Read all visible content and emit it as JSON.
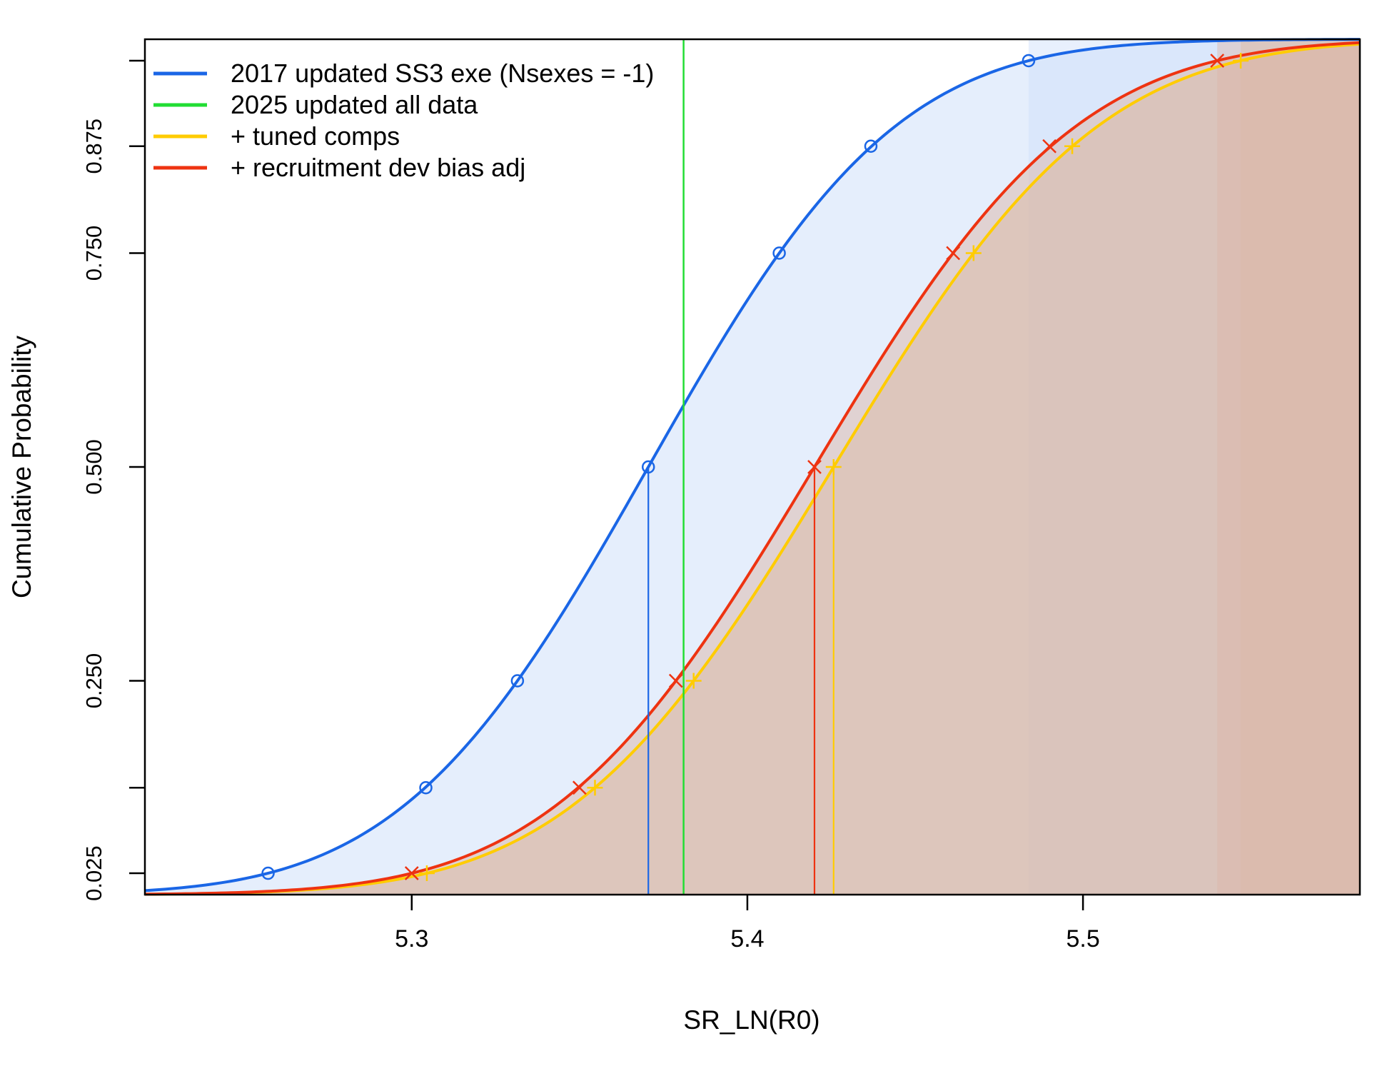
{
  "chart_data": {
    "type": "line",
    "title": "",
    "xlabel": "SR_LN(R0)",
    "ylabel": "Cumulative Probability",
    "xlim": [
      5.2205,
      5.5825
    ],
    "ylim": [
      0.0,
      1.0
    ],
    "x_ticks": [
      5.3,
      5.4,
      5.5
    ],
    "x_tick_labels": [
      "5.3",
      "5.4",
      "5.5"
    ],
    "y_ticks": [
      0.025,
      0.125,
      0.25,
      0.5,
      0.75,
      0.875,
      0.975
    ],
    "y_tick_labels": [
      "0.025",
      "",
      "0.250",
      "0.500",
      "0.750",
      "0.875",
      ""
    ],
    "marker_probabilities": [
      0.025,
      0.125,
      0.25,
      0.5,
      0.75,
      0.875,
      0.975
    ],
    "legend_position": "top-left",
    "grid": false,
    "series": [
      {
        "name": "2017 updated SS3 exe (Nsexes = -1)",
        "color": "#1a66e6",
        "marker": "circle",
        "type": "cdf",
        "median": 5.3705,
        "sd": 0.05783,
        "shade_color": "#ccdefa",
        "quantile_x": [
          5.2572,
          5.3042,
          5.3315,
          5.3705,
          5.4095,
          5.4368,
          5.4838
        ]
      },
      {
        "name": "2025 updated all data",
        "color": "#22dd33",
        "type": "vline",
        "x": 5.381
      },
      {
        "name": "+ tuned comps",
        "color": "#ffcc00",
        "marker": "plus",
        "type": "cdf",
        "median": 5.4257,
        "sd": 0.06185,
        "shade_color": "#d8bea5",
        "quantile_x": [
          5.3045,
          5.3546,
          5.384,
          5.4257,
          5.4674,
          5.4968,
          5.547
        ]
      },
      {
        "name": "+ recruitment dev bias adj",
        "color": "#ee3311",
        "marker": "x",
        "type": "cdf",
        "median": 5.42,
        "sd": 0.06123,
        "shade_color": "#dcb6a8",
        "quantile_x": [
          5.3,
          5.35,
          5.3787,
          5.42,
          5.4613,
          5.49,
          5.54
        ]
      }
    ]
  }
}
